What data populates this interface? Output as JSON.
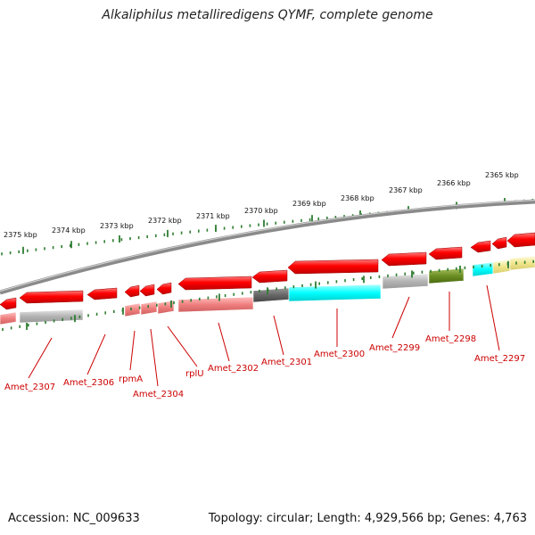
{
  "title": "Alkaliphilus metalliredigens QYMF, complete genome",
  "footer": {
    "accession": "Accession: NC_009633",
    "stats": "Topology: circular; Length: 4,929,566 bp; Genes: 4,763"
  },
  "ruler_labels": [
    "2375 kbp",
    "2374 kbp",
    "2373 kbp",
    "2372 kbp",
    "2371 kbp",
    "2370 kbp",
    "2369 kbp",
    "2368 kbp",
    "2367 kbp",
    "2366 kbp",
    "2365 kbp"
  ],
  "gene_labels": [
    "Amet_2307",
    "Amet_2306",
    "rpmA",
    "Amet_2304",
    "rplU",
    "Amet_2302",
    "Amet_2301",
    "Amet_2300",
    "Amet_2299",
    "Amet_2298",
    "Amet_2297"
  ],
  "colors": {
    "backbone": "#888888",
    "gene_red": "#ff0000",
    "pink": "#f08080",
    "gray": "#b4b4b4",
    "dark_gray": "#666666",
    "cyan": "#00ffff",
    "olive": "#6b8e23",
    "khaki": "#f0e68c",
    "tick": "#2e7d32",
    "label": "#cc0000"
  }
}
